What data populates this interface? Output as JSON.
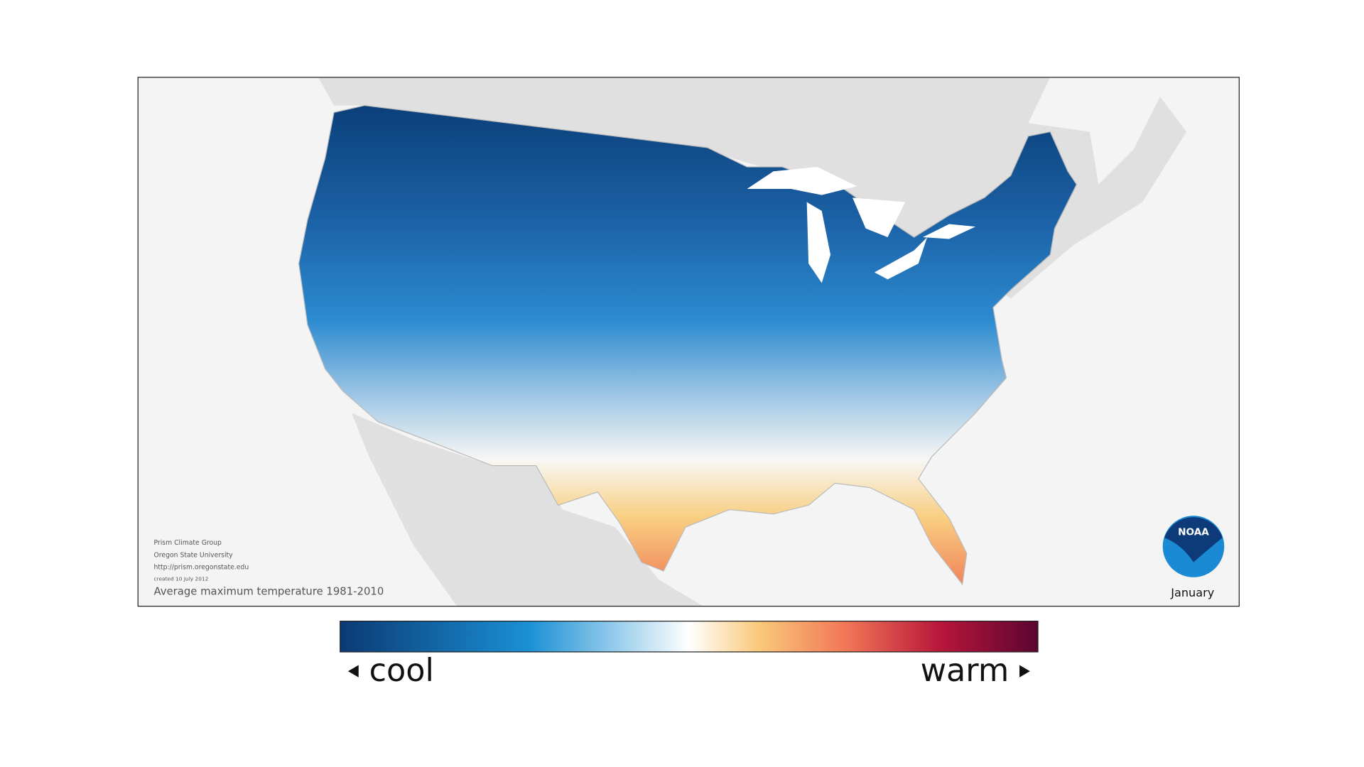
{
  "map": {
    "credits": [
      "Prism Climate Group",
      "Oregon State University",
      "http://prism.oregonstate.edu",
      "created 10 July 2012"
    ],
    "caption": "Average maximum temperature 1981-2010",
    "month": "January",
    "logo": "NOAA"
  },
  "legend": {
    "low": "cool",
    "high": "warm"
  }
}
